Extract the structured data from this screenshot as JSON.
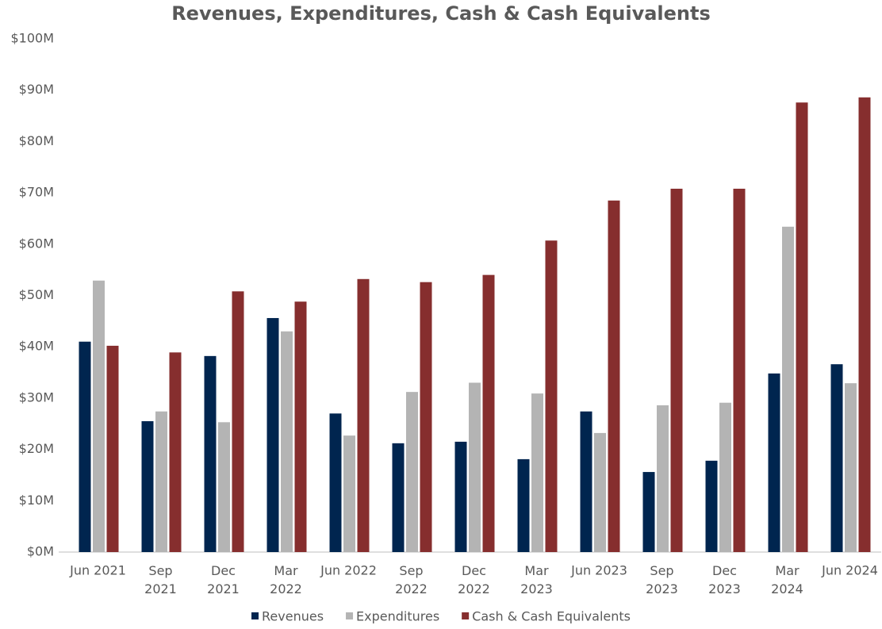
{
  "chart_data": {
    "type": "bar",
    "title": "Revenues, Expenditures, Cash & Cash Equivalents",
    "categories": [
      "Jun 2021",
      "Sep 2021",
      "Dec 2021",
      "Mar 2022",
      "Jun 2022",
      "Sep 2022",
      "Dec 2022",
      "Mar 2023",
      "Jun 2023",
      "Sep 2023",
      "Dec 2023",
      "Mar 2024",
      "Jun 2024"
    ],
    "series": [
      {
        "name": "Revenues",
        "color": "#00254f",
        "values": [
          41.0,
          25.5,
          38.2,
          45.6,
          27.0,
          21.2,
          21.5,
          18.1,
          27.4,
          15.6,
          17.8,
          34.8,
          36.6
        ]
      },
      {
        "name": "Expenditures",
        "color": "#b4b4b4",
        "values": [
          52.9,
          27.4,
          25.3,
          43.0,
          22.7,
          31.2,
          33.0,
          30.9,
          23.2,
          28.6,
          29.1,
          63.4,
          32.9
        ]
      },
      {
        "name": "Cash & Cash Equivalents",
        "color": "#862e2e",
        "values": [
          40.2,
          38.9,
          50.8,
          48.8,
          53.2,
          52.6,
          54.0,
          60.7,
          68.5,
          70.8,
          70.8,
          87.6,
          88.6
        ]
      }
    ],
    "ylim": [
      0,
      100
    ],
    "yticks": [
      {
        "value": 0,
        "label": "$0M"
      },
      {
        "value": 10,
        "label": "$10M"
      },
      {
        "value": 20,
        "label": "$20M"
      },
      {
        "value": 30,
        "label": "$30M"
      },
      {
        "value": 40,
        "label": "$40M"
      },
      {
        "value": 50,
        "label": "$50M"
      },
      {
        "value": 60,
        "label": "$60M"
      },
      {
        "value": 70,
        "label": "$70M"
      },
      {
        "value": 80,
        "label": "$80M"
      },
      {
        "value": 90,
        "label": "$90M"
      },
      {
        "value": 100,
        "label": "$100M"
      }
    ],
    "grid": false,
    "legend": "bottom"
  }
}
